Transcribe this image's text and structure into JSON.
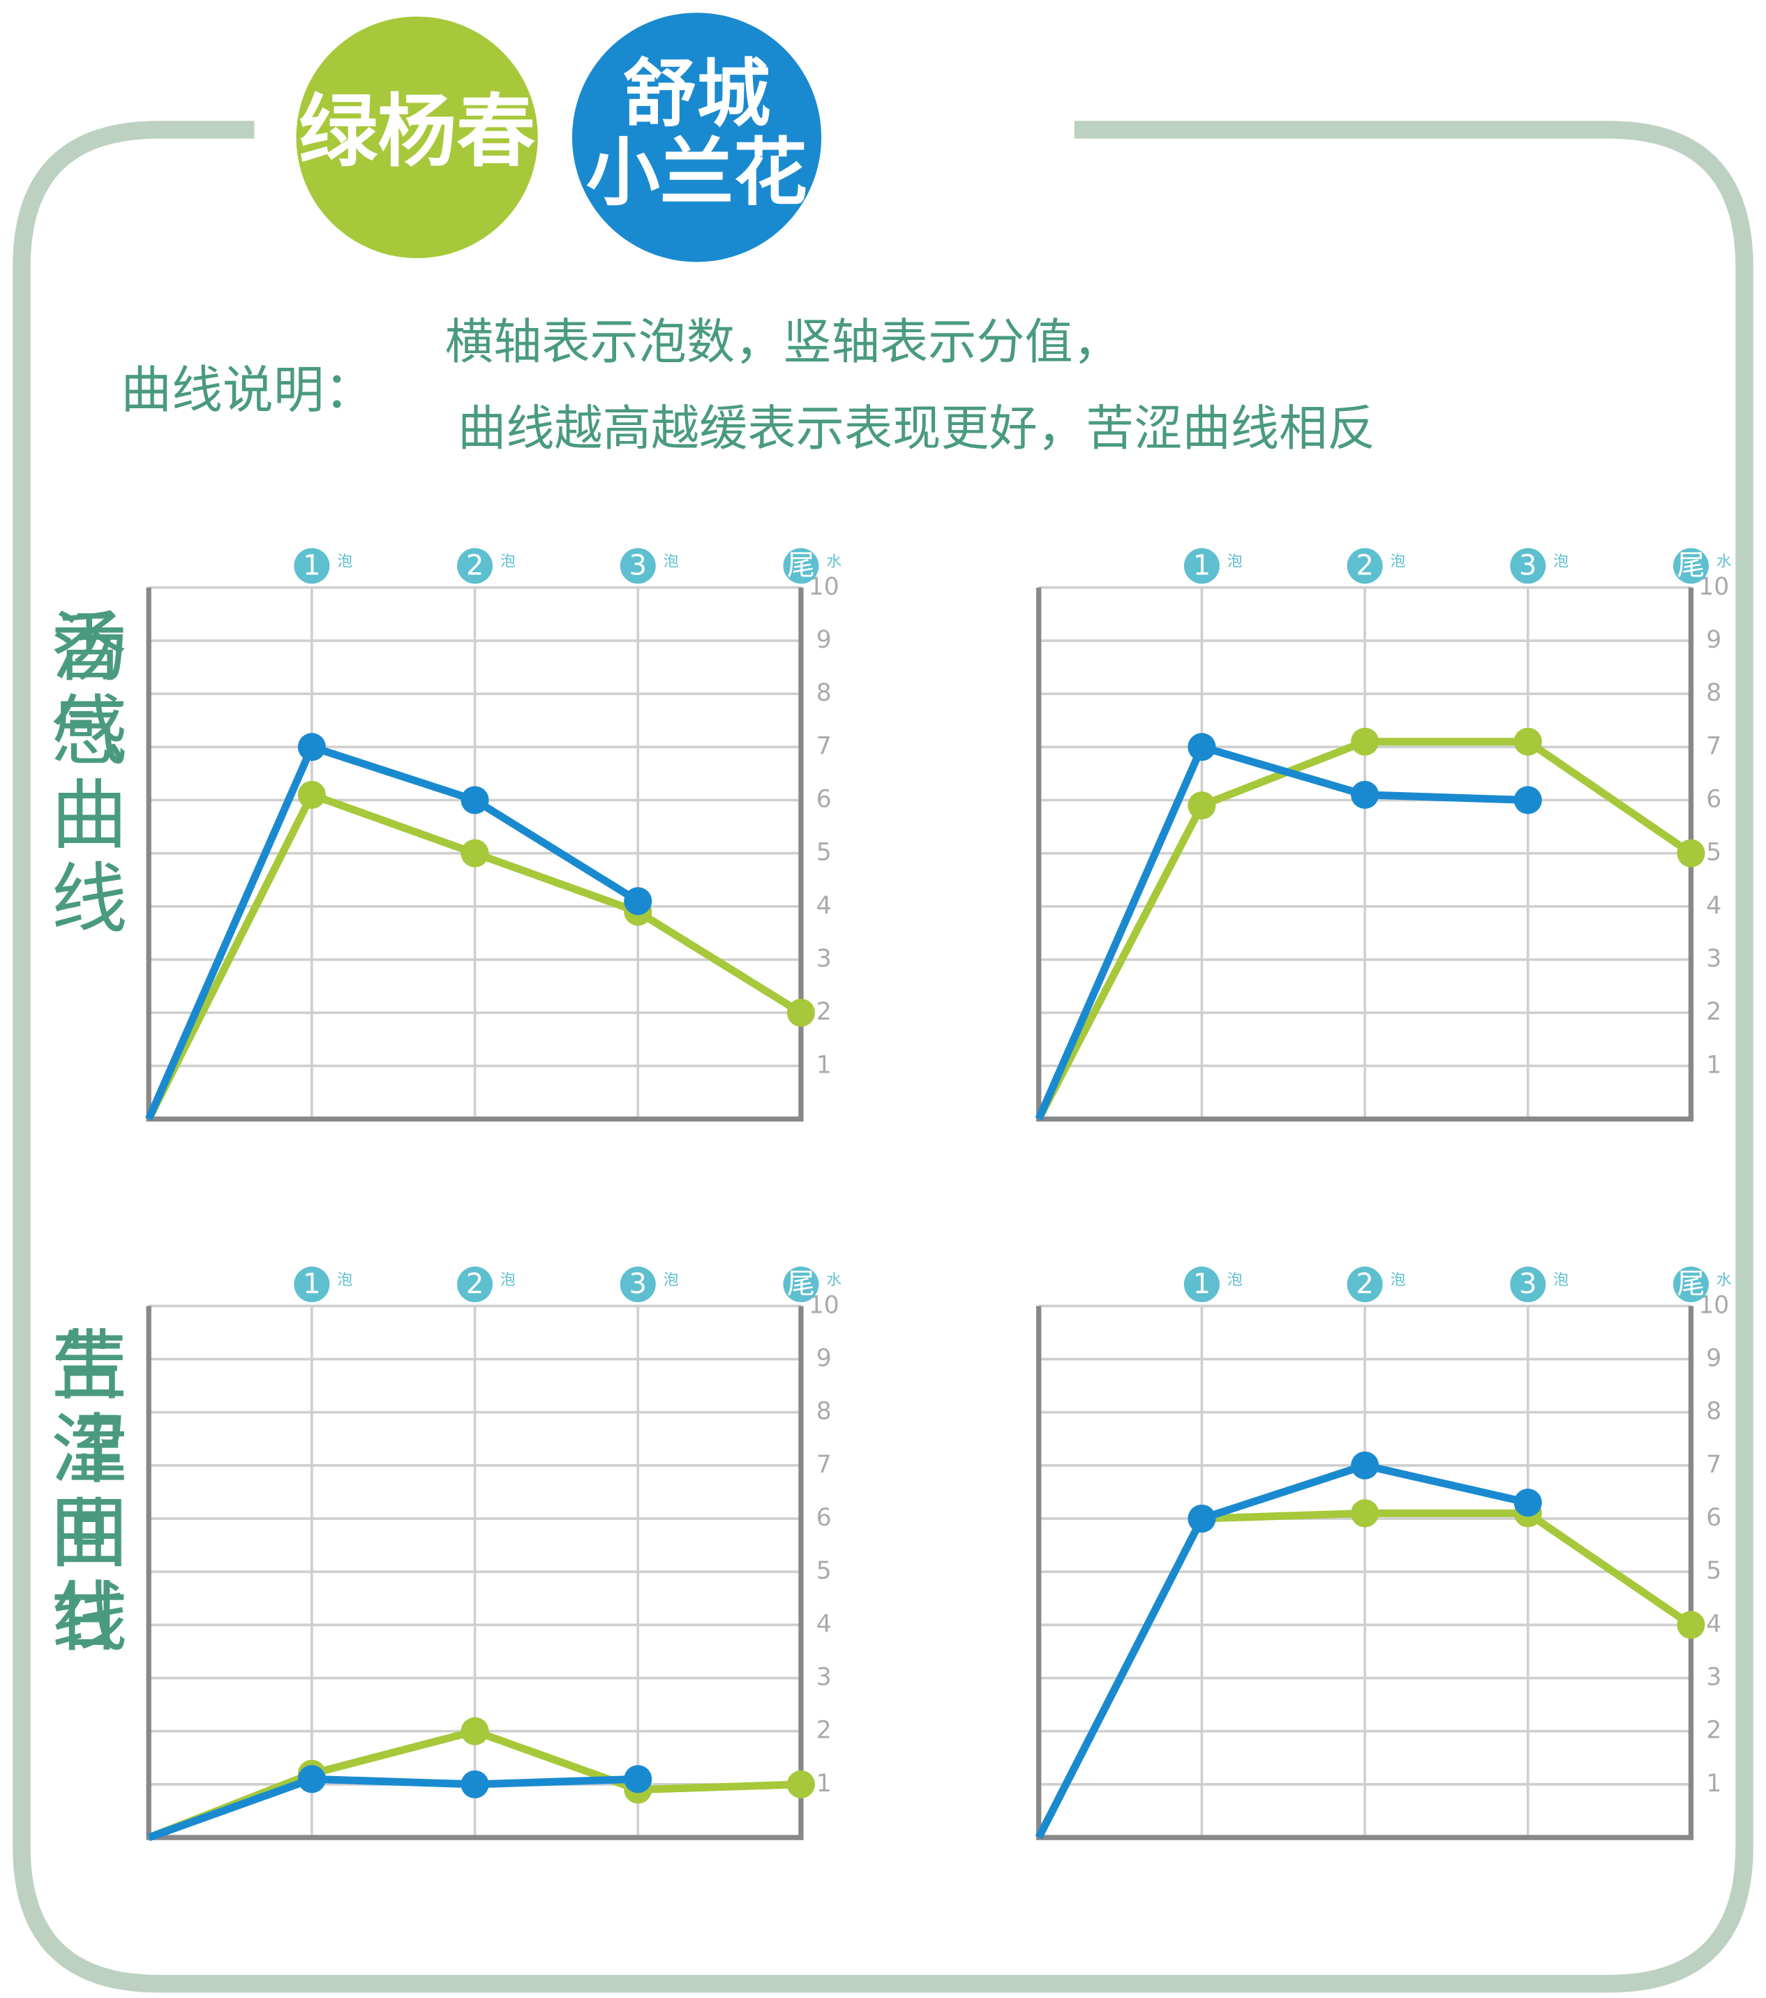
{
  "legend": [
    {
      "name": "绿杨春",
      "color": "#a6c83a"
    },
    {
      "name": "舒城小兰花",
      "color": "#1a8ad0"
    }
  ],
  "note_label": "曲线说明：",
  "note_lines": [
    "横轴表示泡数，竖轴表示分值，",
    "曲线越高越缓表示表现更好，苦涩曲线相反"
  ],
  "chart_data": [
    {
      "type": "line",
      "title": "香气曲线",
      "categories": [
        null,
        "1",
        "2",
        "3",
        "尾"
      ],
      "category_notes": [
        null,
        "泡",
        "泡",
        "泡",
        "水"
      ],
      "ylim": [
        0,
        10
      ],
      "yticks": [
        1,
        2,
        3,
        4,
        5,
        6,
        7,
        8,
        9,
        10
      ],
      "grid": true,
      "series": [
        {
          "color": "#a6c83a",
          "values": [
            0,
            6.1,
            5,
            3.9,
            2
          ]
        },
        {
          "color": "#1a8ad0",
          "values": [
            0,
            7,
            6,
            4.1,
            null
          ]
        }
      ]
    },
    {
      "type": "line",
      "title": "汤感曲线",
      "categories": [
        null,
        "1",
        "2",
        "3",
        "尾"
      ],
      "category_notes": [
        null,
        "泡",
        "泡",
        "泡",
        "水"
      ],
      "ylim": [
        0,
        10
      ],
      "yticks": [
        1,
        2,
        3,
        4,
        5,
        6,
        7,
        8,
        9,
        10
      ],
      "grid": true,
      "series": [
        {
          "color": "#a6c83a",
          "values": [
            0,
            5.9,
            7.1,
            7.1,
            5
          ]
        },
        {
          "color": "#1a8ad0",
          "values": [
            0,
            7,
            6.1,
            6,
            null
          ]
        }
      ]
    },
    {
      "type": "line",
      "title": "苦涩曲线",
      "categories": [
        null,
        "1",
        "2",
        "3",
        "尾"
      ],
      "category_notes": [
        null,
        "泡",
        "泡",
        "泡",
        "水"
      ],
      "ylim": [
        0,
        10
      ],
      "yticks": [
        1,
        2,
        3,
        4,
        5,
        6,
        7,
        8,
        9,
        10
      ],
      "grid": true,
      "series": [
        {
          "color": "#a6c83a",
          "values": [
            0,
            1.2,
            2,
            0.9,
            1
          ]
        },
        {
          "color": "#1a8ad0",
          "values": [
            0,
            1.1,
            1,
            1.1,
            null
          ]
        }
      ]
    },
    {
      "type": "line",
      "title": "生津回甘",
      "categories": [
        null,
        "1",
        "2",
        "3",
        "尾"
      ],
      "category_notes": [
        null,
        "泡",
        "泡",
        "泡",
        "水"
      ],
      "ylim": [
        0,
        10
      ],
      "yticks": [
        1,
        2,
        3,
        4,
        5,
        6,
        7,
        8,
        9,
        10
      ],
      "grid": true,
      "series": [
        {
          "color": "#a6c83a",
          "values": [
            0,
            6,
            6.1,
            6.1,
            4
          ]
        },
        {
          "color": "#1a8ad0",
          "values": [
            0,
            6,
            7,
            6.3,
            null
          ]
        }
      ]
    }
  ]
}
